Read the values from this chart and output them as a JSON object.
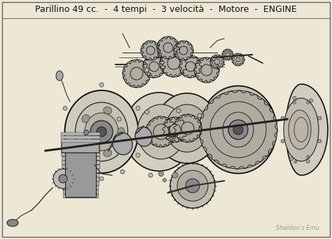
{
  "title": "Parillino 49 cc.  -  4 tempi  -  3 velocità  -  Motore  -  ENGINE",
  "watermark": "Sheldon's Emu",
  "bg_color": "#ede8d5",
  "border_color": "#666666",
  "title_fontsize": 9.0,
  "title_color": "#111111",
  "watermark_color": "#999999",
  "fig_width": 4.74,
  "fig_height": 3.41,
  "dpi": 100
}
